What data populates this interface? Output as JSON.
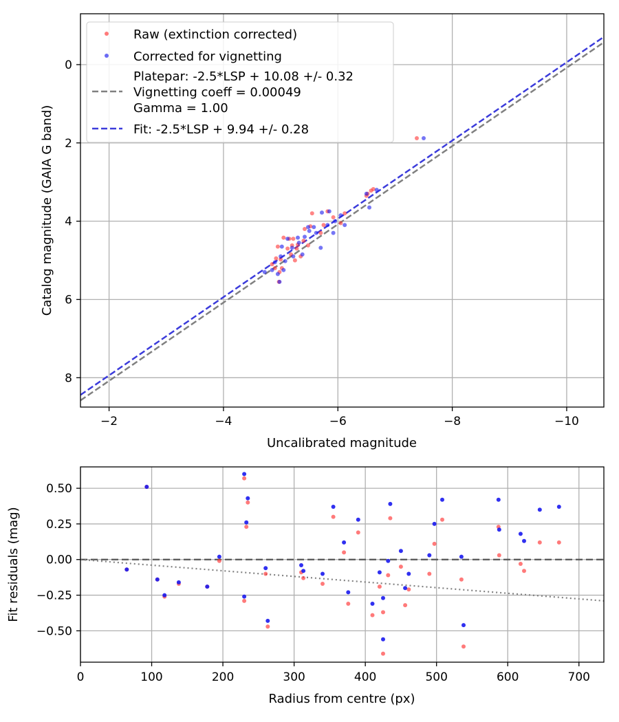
{
  "colors": {
    "raw": "#ff3333",
    "vignetting": "#1a1aee",
    "platepar_line": "#808080",
    "fit_line": "#3b3bdb",
    "grid": "#b0b0b0"
  },
  "chart_data": [
    {
      "type": "scatter",
      "xlabel": "Uncalibrated magnitude",
      "ylabel": "Catalog magnitude (GAIA G band)",
      "xlim": [
        -1.5,
        -10.65
      ],
      "ylim": [
        -1.3,
        8.75
      ],
      "x_inverted": true,
      "y_inverted": true,
      "xticks": [
        -2,
        -4,
        -6,
        -8,
        -10
      ],
      "xtick_labels": [
        "−2",
        "−4",
        "−6",
        "−8",
        "−10"
      ],
      "yticks": [
        0,
        2,
        4,
        6,
        8
      ],
      "ytick_labels": [
        "0",
        "2",
        "4",
        "6",
        "8"
      ],
      "grid": true,
      "legend_position": "top-left",
      "legend": {
        "raw": "Raw (extinction corrected)",
        "vignetting": "Corrected for vignetting",
        "platepar": [
          "Platepar: -2.5*LSP + 10.08 +/- 0.32",
          "Vignetting coeff = 0.00049",
          "Gamma = 1.00"
        ],
        "fit": "Fit: -2.5*LSP + 9.94 +/- 0.28"
      },
      "lines": [
        {
          "name": "platepar",
          "slope": 1,
          "intercept": 10.08,
          "style": "dashed"
        },
        {
          "name": "fit",
          "slope": 1,
          "intercept": 9.94,
          "style": "dashed"
        }
      ],
      "series": [
        {
          "name": "Raw (extinction corrected)",
          "points": [
            [
              -7.38,
              1.88
            ],
            [
              -6.62,
              3.18
            ],
            [
              -6.58,
              3.22
            ],
            [
              -6.52,
              3.3
            ],
            [
              -6.5,
              3.35
            ],
            [
              -6.12,
              3.8
            ],
            [
              -6.05,
              4.05
            ],
            [
              -5.92,
              3.9
            ],
            [
              -5.82,
              3.75
            ],
            [
              -5.75,
              4.1
            ],
            [
              -5.7,
              4.3
            ],
            [
              -5.55,
              3.8
            ],
            [
              -5.52,
              4.13
            ],
            [
              -5.48,
              4.62
            ],
            [
              -5.42,
              4.2
            ],
            [
              -5.4,
              4.5
            ],
            [
              -5.35,
              4.9
            ],
            [
              -5.3,
              4.6
            ],
            [
              -5.28,
              4.7
            ],
            [
              -5.25,
              5.0
            ],
            [
              -5.22,
              4.45
            ],
            [
              -5.2,
              4.62
            ],
            [
              -5.18,
              4.85
            ],
            [
              -5.15,
              4.45
            ],
            [
              -5.12,
              4.7
            ],
            [
              -5.05,
              4.42
            ],
            [
              -5.02,
              5.2
            ],
            [
              -5.0,
              4.98
            ],
            [
              -4.98,
              5.3
            ],
            [
              -4.97,
              5.55
            ],
            [
              -4.95,
              4.65
            ],
            [
              -4.92,
              4.95
            ],
            [
              -4.9,
              5.2
            ],
            [
              -4.85,
              5.1
            ]
          ]
        },
        {
          "name": "Corrected for vignetting",
          "points": [
            [
              -7.5,
              1.88
            ],
            [
              -6.68,
              3.2
            ],
            [
              -6.55,
              3.65
            ],
            [
              -6.5,
              3.3
            ],
            [
              -6.12,
              4.1
            ],
            [
              -6.05,
              3.85
            ],
            [
              -5.95,
              4.0
            ],
            [
              -5.92,
              4.3
            ],
            [
              -5.85,
              3.75
            ],
            [
              -5.82,
              4.1
            ],
            [
              -5.72,
              3.78
            ],
            [
              -5.7,
              4.68
            ],
            [
              -5.62,
              4.3
            ],
            [
              -5.58,
              4.15
            ],
            [
              -5.5,
              4.25
            ],
            [
              -5.48,
              4.15
            ],
            [
              -5.42,
              4.4
            ],
            [
              -5.38,
              4.85
            ],
            [
              -5.32,
              4.55
            ],
            [
              -5.3,
              4.42
            ],
            [
              -5.22,
              4.9
            ],
            [
              -5.2,
              4.68
            ],
            [
              -5.12,
              4.45
            ],
            [
              -5.08,
              5.02
            ],
            [
              -5.05,
              5.25
            ],
            [
              -5.02,
              4.65
            ],
            [
              -5.0,
              4.9
            ],
            [
              -4.98,
              5.55
            ],
            [
              -4.95,
              5.35
            ],
            [
              -4.9,
              5.05
            ],
            [
              -4.85,
              5.25
            ],
            [
              -4.72,
              5.3
            ]
          ]
        }
      ]
    },
    {
      "type": "scatter",
      "xlabel": "Radius from centre (px)",
      "ylabel": "Fit residuals (mag)",
      "xlim": [
        0,
        735
      ],
      "ylim": [
        -0.72,
        0.65
      ],
      "xticks": [
        0,
        100,
        200,
        300,
        400,
        500,
        600,
        700
      ],
      "xtick_labels": [
        "0",
        "100",
        "200",
        "300",
        "400",
        "500",
        "600",
        "700"
      ],
      "yticks": [
        0.5,
        0.25,
        0.0,
        -0.25,
        -0.5
      ],
      "ytick_labels": [
        "0.50",
        "0.25",
        "0.00",
        "−0.25",
        "−0.50"
      ],
      "grid": true,
      "reference_lines": [
        {
          "name": "zero",
          "y": 0,
          "style": "dashed"
        },
        {
          "name": "vignetting-model",
          "points": [
            [
              0,
              0.0
            ],
            [
              735,
              -0.29
            ]
          ],
          "style": "dotted"
        }
      ],
      "series": [
        {
          "name": "Raw (extinction corrected)",
          "points": [
            [
              65,
              -0.07
            ],
            [
              93,
              0.51
            ],
            [
              108,
              -0.14
            ],
            [
              118,
              -0.26
            ],
            [
              138,
              -0.17
            ],
            [
              178,
              -0.19
            ],
            [
              195,
              -0.01
            ],
            [
              230,
              0.57
            ],
            [
              230,
              -0.29
            ],
            [
              233,
              0.23
            ],
            [
              235,
              0.4
            ],
            [
              260,
              -0.1
            ],
            [
              263,
              -0.47
            ],
            [
              310,
              -0.09
            ],
            [
              313,
              -0.13
            ],
            [
              340,
              -0.17
            ],
            [
              355,
              0.3
            ],
            [
              370,
              0.05
            ],
            [
              376,
              -0.31
            ],
            [
              390,
              0.19
            ],
            [
              410,
              -0.39
            ],
            [
              420,
              -0.19
            ],
            [
              425,
              -0.37
            ],
            [
              425,
              -0.66
            ],
            [
              432,
              -0.11
            ],
            [
              435,
              0.29
            ],
            [
              450,
              -0.05
            ],
            [
              456,
              -0.32
            ],
            [
              461,
              -0.21
            ],
            [
              490,
              -0.1
            ],
            [
              497,
              0.11
            ],
            [
              508,
              0.28
            ],
            [
              535,
              -0.14
            ],
            [
              538,
              -0.61
            ],
            [
              587,
              0.23
            ],
            [
              588,
              0.03
            ],
            [
              618,
              -0.03
            ],
            [
              623,
              -0.08
            ],
            [
              645,
              0.12
            ],
            [
              672,
              0.12
            ]
          ]
        },
        {
          "name": "Corrected for vignetting",
          "points": [
            [
              65,
              -0.07
            ],
            [
              93,
              0.51
            ],
            [
              108,
              -0.14
            ],
            [
              118,
              -0.25
            ],
            [
              138,
              -0.16
            ],
            [
              178,
              -0.19
            ],
            [
              195,
              0.02
            ],
            [
              230,
              0.6
            ],
            [
              230,
              -0.26
            ],
            [
              233,
              0.26
            ],
            [
              235,
              0.43
            ],
            [
              260,
              -0.06
            ],
            [
              263,
              -0.43
            ],
            [
              310,
              -0.04
            ],
            [
              313,
              -0.08
            ],
            [
              340,
              -0.1
            ],
            [
              355,
              0.37
            ],
            [
              370,
              0.12
            ],
            [
              376,
              -0.23
            ],
            [
              390,
              0.28
            ],
            [
              410,
              -0.31
            ],
            [
              420,
              -0.09
            ],
            [
              425,
              -0.27
            ],
            [
              425,
              -0.56
            ],
            [
              432,
              -0.01
            ],
            [
              435,
              0.39
            ],
            [
              450,
              0.06
            ],
            [
              456,
              -0.2
            ],
            [
              461,
              -0.1
            ],
            [
              490,
              0.03
            ],
            [
              497,
              0.25
            ],
            [
              508,
              0.42
            ],
            [
              535,
              0.02
            ],
            [
              538,
              -0.46
            ],
            [
              587,
              0.42
            ],
            [
              588,
              0.21
            ],
            [
              618,
              0.18
            ],
            [
              623,
              0.13
            ],
            [
              645,
              0.35
            ],
            [
              672,
              0.37
            ]
          ]
        }
      ]
    }
  ]
}
